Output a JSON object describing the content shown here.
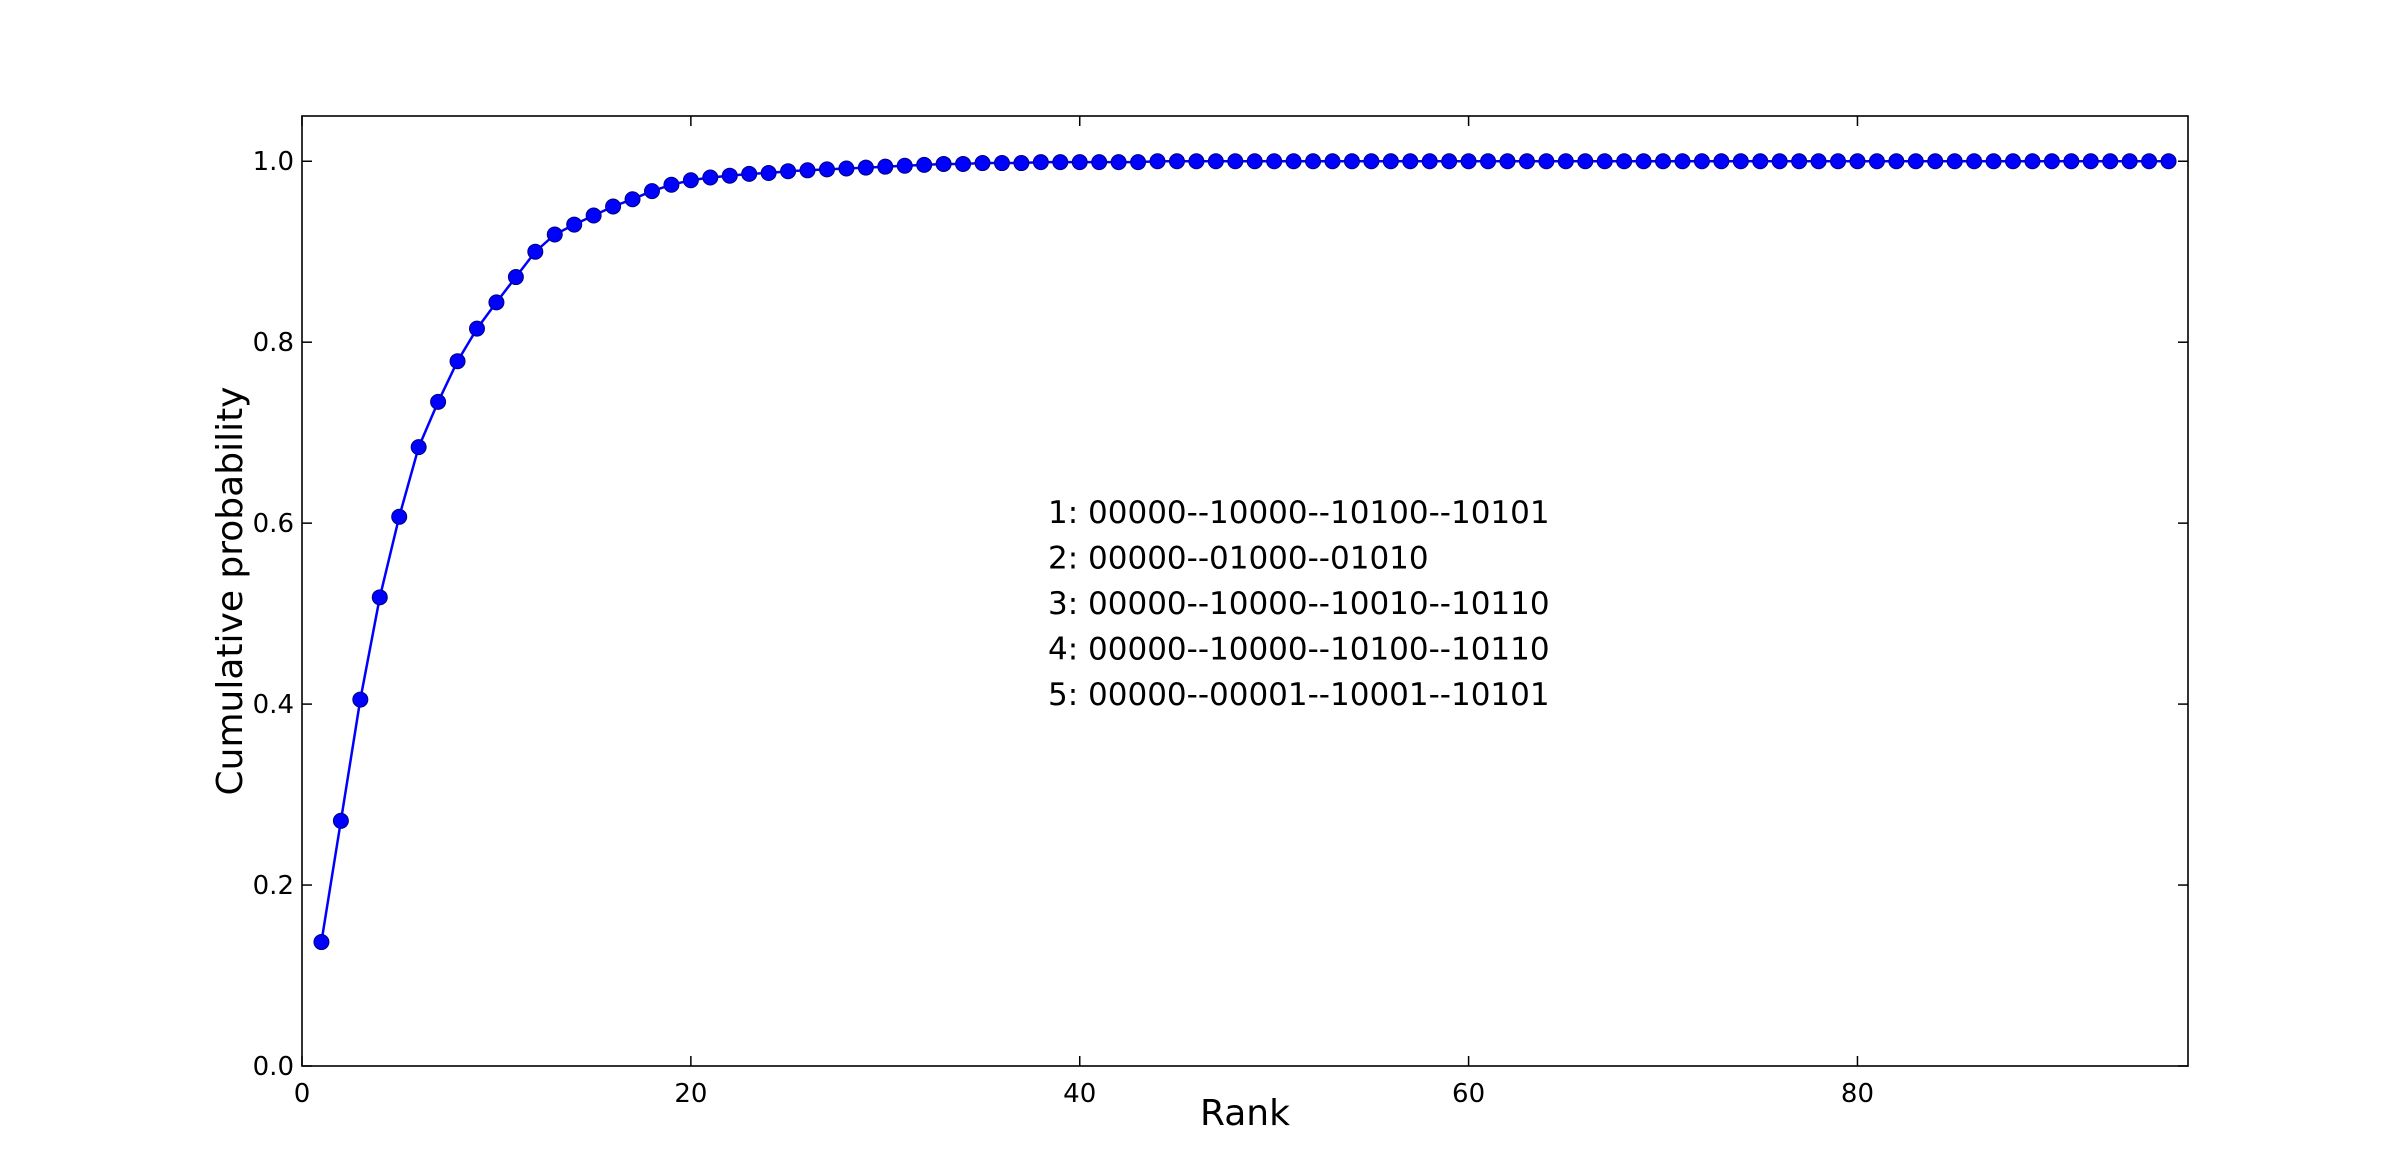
{
  "chart_data": {
    "type": "line",
    "title": "",
    "xlabel": "Rank",
    "ylabel": "Cumulative probability",
    "xlim": [
      0,
      97
    ],
    "ylim": [
      0.0,
      1.05
    ],
    "xticks": [
      0,
      20,
      40,
      60,
      80
    ],
    "yticks": [
      0.0,
      0.2,
      0.4,
      0.6,
      0.8,
      1.0
    ],
    "xtick_labels": [
      "0",
      "20",
      "40",
      "60",
      "80"
    ],
    "ytick_labels": [
      "0.0",
      "0.2",
      "0.4",
      "0.6",
      "0.8",
      "1.0"
    ],
    "grid": false,
    "line_color": "#0000ff",
    "marker": "circle",
    "series": [
      {
        "x": [
          1,
          2,
          3,
          4,
          5,
          6,
          7,
          8,
          9,
          10,
          11,
          12,
          13,
          14,
          15,
          16,
          17,
          18,
          19,
          20,
          21,
          22,
          23,
          24,
          25,
          26,
          27,
          28,
          29,
          30,
          31,
          32,
          33,
          34,
          35,
          36,
          37,
          38,
          39,
          40,
          41,
          42,
          43,
          44,
          45,
          46,
          47,
          48,
          49,
          50,
          51,
          52,
          53,
          54,
          55,
          56,
          57,
          58,
          59,
          60,
          61,
          62,
          63,
          64,
          65,
          66,
          67,
          68,
          69,
          70,
          71,
          72,
          73,
          74,
          75,
          76,
          77,
          78,
          79,
          80,
          81,
          82,
          83,
          84,
          85,
          86,
          87,
          88,
          89,
          90,
          91,
          92,
          93,
          94,
          95,
          96
        ],
        "y": [
          0.137,
          0.271,
          0.405,
          0.518,
          0.607,
          0.684,
          0.734,
          0.779,
          0.815,
          0.844,
          0.872,
          0.9,
          0.919,
          0.93,
          0.94,
          0.95,
          0.958,
          0.967,
          0.974,
          0.979,
          0.982,
          0.984,
          0.986,
          0.987,
          0.989,
          0.99,
          0.991,
          0.992,
          0.993,
          0.994,
          0.995,
          0.996,
          0.997,
          0.997,
          0.998,
          0.998,
          0.998,
          0.999,
          0.999,
          0.999,
          0.999,
          0.999,
          0.999,
          1.0,
          1.0,
          1.0,
          1.0,
          1.0,
          1.0,
          1.0,
          1.0,
          1.0,
          1.0,
          1.0,
          1.0,
          1.0,
          1.0,
          1.0,
          1.0,
          1.0,
          1.0,
          1.0,
          1.0,
          1.0,
          1.0,
          1.0,
          1.0,
          1.0,
          1.0,
          1.0,
          1.0,
          1.0,
          1.0,
          1.0,
          1.0,
          1.0,
          1.0,
          1.0,
          1.0,
          1.0,
          1.0,
          1.0,
          1.0,
          1.0,
          1.0,
          1.0,
          1.0,
          1.0,
          1.0,
          1.0,
          1.0,
          1.0,
          1.0,
          1.0,
          1.0,
          1.0
        ]
      }
    ],
    "annotations": [
      "1: 00000--10000--10100--10101",
      "2: 00000--01000--01010",
      "3: 00000--10000--10010--10110",
      "4: 00000--10000--10100--10110",
      "5: 00000--00001--10001--10101"
    ]
  }
}
